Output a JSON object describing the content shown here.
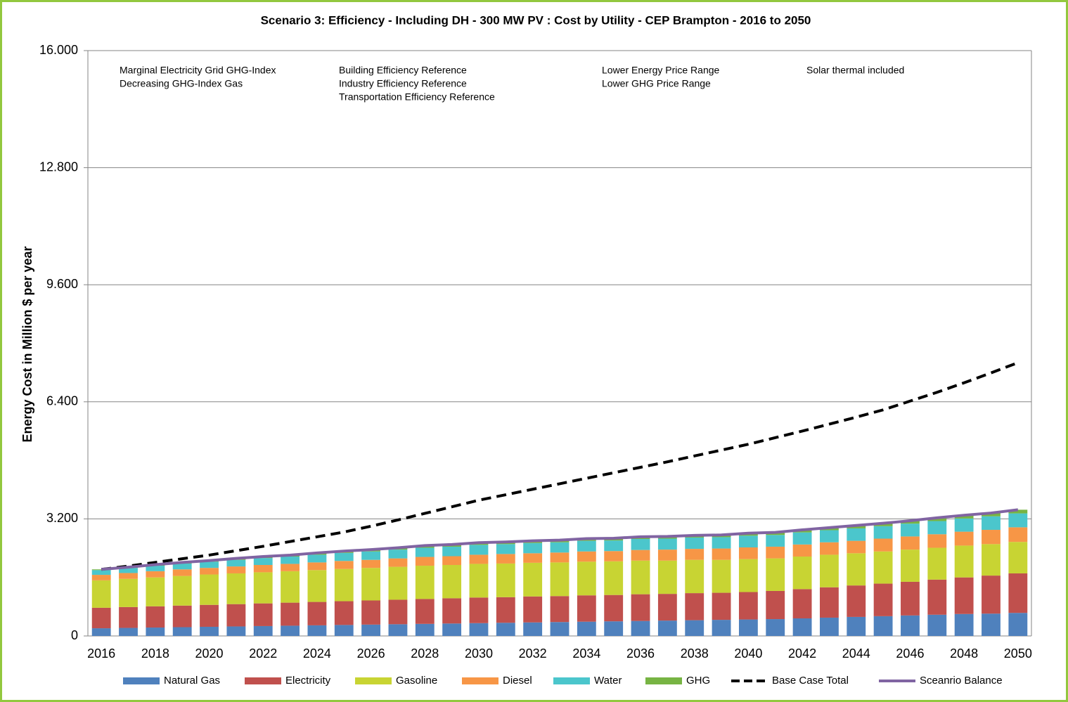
{
  "chart_data": {
    "type": "stacked-bar",
    "title": "Scenario 3: Efficiency - Including DH - 300 MW PV : Cost by Utility - CEP Brampton - 2016 to 2050",
    "y_label": "Energy Cost in Million  $ per year",
    "annotations": [
      "Marginal  Electricity Grid GHG-Index",
      "Decreasing GHG-Index  Gas",
      "Building Efficiency Reference",
      "Industry Efficiency Reference",
      "Transportation  Efficiency Reference",
      "Lower  Energy  Price Range",
      "Lower  GHG Price Range",
      "Solar thermal included"
    ],
    "categories": [
      "2016",
      null,
      "2018",
      null,
      "2020",
      null,
      "2022",
      null,
      "2024",
      null,
      "2026",
      null,
      "2028",
      null,
      "2030",
      null,
      "2032",
      null,
      "2034",
      null,
      "2036",
      null,
      "2038",
      null,
      "2040",
      null,
      "2042",
      null,
      "2044",
      null,
      "2046",
      null,
      "2048",
      null,
      "2050"
    ],
    "ylim": [
      0,
      16
    ],
    "yticks": [
      0,
      {
        "value": 3.2,
        "label": "3.200"
      },
      {
        "value": 6.4,
        "label": "6.400"
      },
      {
        "value": 9.6,
        "label": "9.600"
      },
      {
        "value": 12.8,
        "label": "12.800"
      },
      {
        "value": 16,
        "label": "16.000"
      }
    ],
    "grid": true,
    "legend": "bottom",
    "series": [
      {
        "name": "Natural Gas",
        "color": "#4f81bd",
        "type": "bar",
        "values": [
          0.21,
          0.22,
          0.23,
          0.24,
          0.25,
          0.26,
          0.27,
          0.28,
          0.29,
          0.3,
          0.31,
          0.32,
          0.33,
          0.34,
          0.35,
          0.36,
          0.37,
          0.38,
          0.39,
          0.4,
          0.41,
          0.42,
          0.43,
          0.44,
          0.45,
          0.46,
          0.48,
          0.5,
          0.52,
          0.54,
          0.56,
          0.58,
          0.6,
          0.61,
          0.63
        ]
      },
      {
        "name": "Electricity",
        "color": "#c0504d",
        "type": "bar",
        "values": [
          0.56,
          0.57,
          0.58,
          0.59,
          0.6,
          0.61,
          0.62,
          0.63,
          0.64,
          0.65,
          0.66,
          0.67,
          0.68,
          0.69,
          0.7,
          0.7,
          0.71,
          0.71,
          0.72,
          0.72,
          0.73,
          0.73,
          0.74,
          0.74,
          0.75,
          0.77,
          0.8,
          0.83,
          0.86,
          0.89,
          0.92,
          0.96,
          1.0,
          1.04,
          1.08
        ]
      },
      {
        "name": "Gasoline",
        "color": "#c8d433",
        "type": "bar",
        "values": [
          0.75,
          0.77,
          0.79,
          0.81,
          0.83,
          0.84,
          0.85,
          0.86,
          0.87,
          0.88,
          0.89,
          0.9,
          0.91,
          0.91,
          0.92,
          0.92,
          0.92,
          0.92,
          0.92,
          0.92,
          0.92,
          0.91,
          0.91,
          0.9,
          0.9,
          0.89,
          0.89,
          0.89,
          0.88,
          0.88,
          0.88,
          0.87,
          0.87,
          0.86,
          0.86
        ]
      },
      {
        "name": "Diesel",
        "color": "#f79646",
        "type": "bar",
        "values": [
          0.15,
          0.16,
          0.17,
          0.18,
          0.18,
          0.19,
          0.2,
          0.2,
          0.21,
          0.22,
          0.22,
          0.23,
          0.24,
          0.24,
          0.25,
          0.26,
          0.26,
          0.27,
          0.28,
          0.28,
          0.29,
          0.3,
          0.3,
          0.31,
          0.32,
          0.32,
          0.33,
          0.34,
          0.34,
          0.35,
          0.36,
          0.37,
          0.38,
          0.39,
          0.4
        ]
      },
      {
        "name": "Water",
        "color": "#4bc6cc",
        "type": "bar",
        "values": [
          0.13,
          0.14,
          0.15,
          0.16,
          0.17,
          0.18,
          0.19,
          0.2,
          0.21,
          0.22,
          0.23,
          0.24,
          0.25,
          0.26,
          0.27,
          0.27,
          0.28,
          0.28,
          0.29,
          0.29,
          0.3,
          0.3,
          0.31,
          0.31,
          0.32,
          0.32,
          0.33,
          0.33,
          0.34,
          0.34,
          0.35,
          0.36,
          0.36,
          0.37,
          0.38
        ]
      },
      {
        "name": "GHG",
        "color": "#77b443",
        "type": "bar",
        "values": [
          0.02,
          0.02,
          0.03,
          0.03,
          0.03,
          0.04,
          0.04,
          0.04,
          0.05,
          0.05,
          0.05,
          0.05,
          0.06,
          0.06,
          0.06,
          0.06,
          0.06,
          0.06,
          0.06,
          0.06,
          0.06,
          0.06,
          0.06,
          0.06,
          0.07,
          0.07,
          0.07,
          0.07,
          0.08,
          0.08,
          0.08,
          0.09,
          0.09,
          0.09,
          0.1
        ]
      },
      {
        "name": "Base Case Total",
        "color": "#000000",
        "type": "line",
        "dashed": true,
        "values": [
          1.82,
          1.91,
          2.01,
          2.11,
          2.21,
          2.33,
          2.45,
          2.58,
          2.71,
          2.84,
          3.0,
          3.17,
          3.35,
          3.53,
          3.71,
          3.86,
          4.01,
          4.16,
          4.31,
          4.46,
          4.61,
          4.76,
          4.92,
          5.08,
          5.24,
          5.42,
          5.6,
          5.79,
          5.98,
          6.18,
          6.42,
          6.66,
          6.92,
          7.19,
          7.47
        ]
      },
      {
        "name": "Sceanrio Balance",
        "color": "#8064a2",
        "type": "line",
        "dashed": false,
        "values": [
          1.82,
          1.88,
          1.95,
          2.01,
          2.06,
          2.12,
          2.17,
          2.21,
          2.27,
          2.32,
          2.36,
          2.41,
          2.47,
          2.5,
          2.55,
          2.57,
          2.6,
          2.62,
          2.66,
          2.67,
          2.71,
          2.72,
          2.75,
          2.76,
          2.81,
          2.83,
          2.9,
          2.96,
          3.02,
          3.08,
          3.15,
          3.23,
          3.3,
          3.36,
          3.45
        ]
      }
    ]
  }
}
